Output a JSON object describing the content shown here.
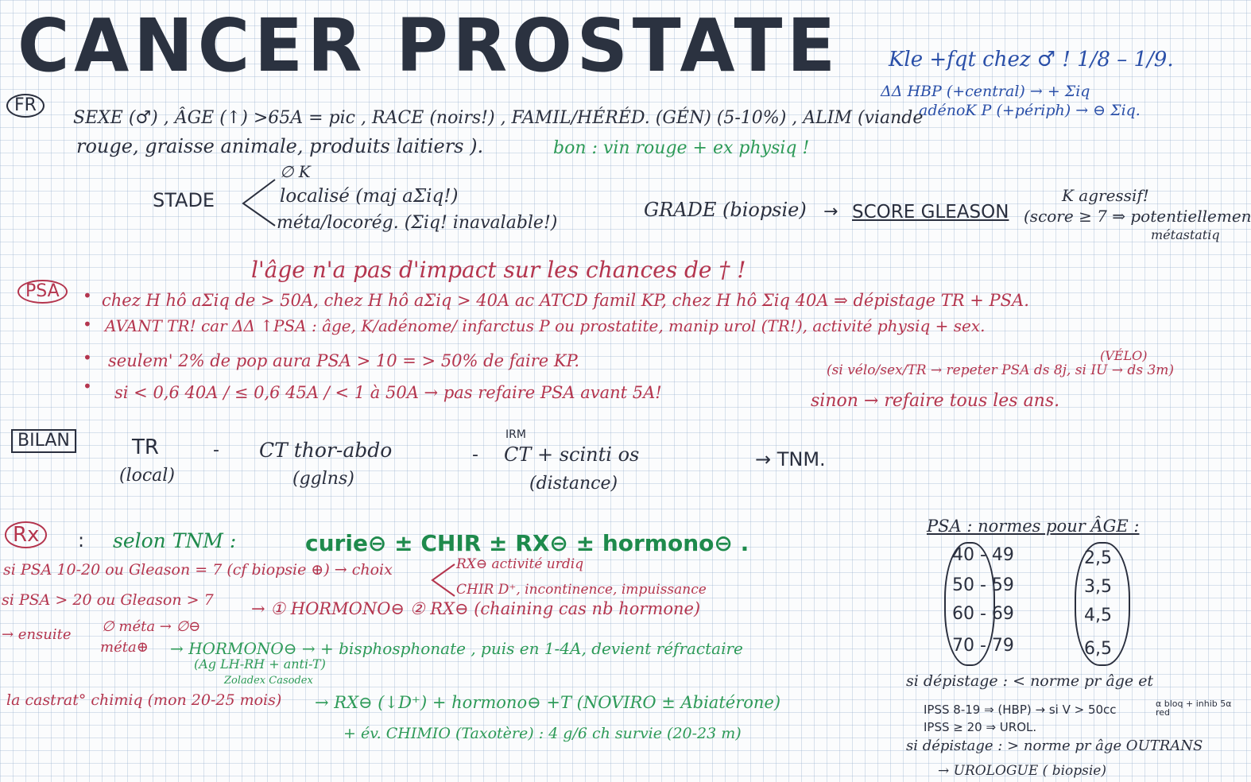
{
  "title": "CANCER PROSTATE",
  "topright": {
    "line1": "Kle +fqt chez ♂ ! 1/8 – 1/9.",
    "line2": "ΔΔ HBP (+central) → + Σiq",
    "line3": "adénoK P (+périph) → ⊖ Σiq."
  },
  "fr": {
    "label": "FR",
    "line1": "SEXE (♂) , ÂGE (↑) >65A = pic , RACE (noirs!) , FAMIL/HÉRÉD. (GÉN) (5-10%) , ALIM (viande",
    "line2": "rouge, graisse animale, produits laitiers ).",
    "good": "bon : vin rouge + ex physiq !"
  },
  "stade": {
    "label": "STADE",
    "opt1": "∅ K",
    "opt2": "localisé (maj aΣiq!)",
    "opt3": "méta/locorég. (Σiq! inavalable!)"
  },
  "grade": {
    "label": "GRADE (biopsie)",
    "arrow": "→",
    "score": "SCORE GLEASON",
    "note1": "K agressif!",
    "note2": "(score ≥ 7 ⇒ potentiellement",
    "note3": "métastatiq"
  },
  "age_note": "l'âge n'a pas d'impact sur les chances de † !",
  "psa": {
    "label": "PSA",
    "b1": "chez H hô aΣiq de > 50A, chez H hô aΣiq > 40A ac ATCD famil KP, chez H hô Σiq 40A  ⇒ dépistage TR + PSA.",
    "b2": "AVANT TR!   car ΔΔ ↑PSA : âge, K/adénome/ infarctus P ou prostatite, manip urol (TR!), activité physiq + sex.",
    "b2b": "(VÉLO)",
    "b3": "seulem' 2% de pop aura PSA > 10   = > 50% de faire KP.",
    "b3b": "(si vélo/sex/TR → repeter PSA ds 8j, si IU → ds 3m)",
    "b4": "si < 0,6 40A / ≤ 0,6 45A / < 1 à 50A  → pas refaire PSA avant 5A!",
    "b4b": "sinon → refaire tous les ans."
  },
  "bilan": {
    "label": "BILAN",
    "c1": "TR",
    "c1s": "(local)",
    "dash1": "-",
    "c2": "CT thor-abdo",
    "c2s": "(gglns)",
    "dash2": "-",
    "c3a": "IRM",
    "c3": "CT + scinti os",
    "c3s": "(distance)",
    "arrow": "→ TNM."
  },
  "rx": {
    "label": "Rx",
    "colon": ":",
    "head": "selon TNM   :",
    "options": "curie⊖ ± CHIR ± RX⊖ ± hormono⊖ .",
    "r1": "si PSA 10-20 ou Gleason = 7 (cf biopsie ⊕) → choix",
    "r1a": "RX⊖  activité urdiq",
    "r1b": "CHIR  D⁺, incontinence, impuissance",
    "r2": "si PSA > 20 ou Gleason > 7",
    "r2b": "→ ① HORMONO⊖ ② RX⊖ (chaining cas nb hormone)",
    "r3": "→ ensuite",
    "r3a": "∅ méta → ∅⊖",
    "r3b": "méta⊕",
    "r3c": "→ HORMONO⊖ → + bisphosphonate , puis en 1-4A, devient réfractaire",
    "r3d": "(Ag LH-RH + anti-T)",
    "r3e": "Zoladex   Casodex",
    "r4": "la castrat° chimiq (mon 20-25 mois)",
    "r4b": "→ RX⊖ (↓D⁺) + hormono⊖ +T (NOVIRO ± Abiatérone)",
    "r4c": "+ év. CHIMIO (Taxotère) : 4 g/6 ch survie (20-23 m)"
  },
  "normes": {
    "header": "PSA : normes pour ÂGE :",
    "rows": [
      {
        "age": "40 - 49",
        "value": "2,5"
      },
      {
        "age": "50 - 59",
        "value": "3,5"
      },
      {
        "age": "60 - 69",
        "value": "4,5"
      },
      {
        "age": "70 - 79",
        "value": "6,5"
      }
    ],
    "n1": "si dépistage : < norme pr âge et",
    "n2a": "IPSS 8-19 ⇒ (HBP) → si V > 50cc",
    "n2b": "α bloq + inhib 5α red",
    "n3": "IPSS ≥ 20 ⇒ UROL.",
    "n4": "si dépistage : > norme pr âge OUTRANS",
    "n5": "→ UROLOGUE ( biopsie)"
  }
}
